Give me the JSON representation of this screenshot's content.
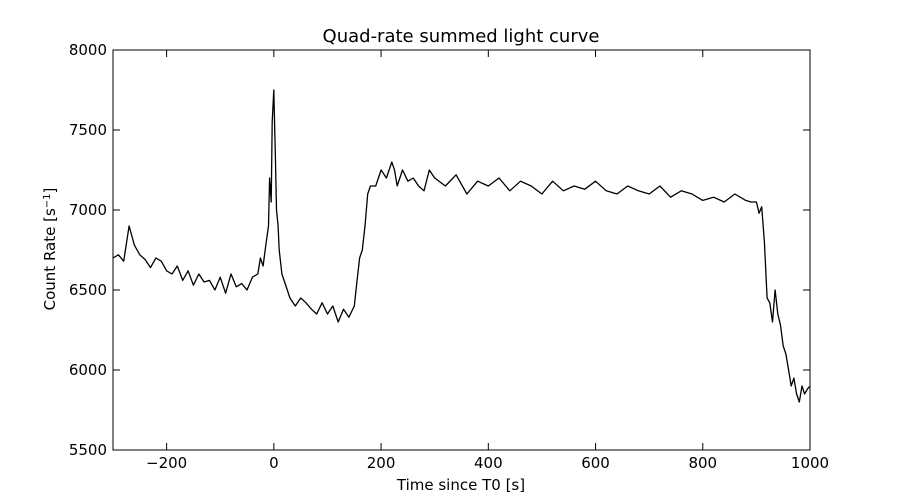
{
  "chart_data": {
    "type": "line",
    "title": "Quad-rate summed light curve",
    "xlabel": "Time since T0 [s]",
    "ylabel_prefix": "Count Rate [s",
    "ylabel_sup": "−1",
    "ylabel_suffix": "]",
    "xlim": [
      -300,
      1000
    ],
    "ylim": [
      5500,
      8000
    ],
    "xticks": [
      -200,
      0,
      200,
      400,
      600,
      800,
      1000
    ],
    "xtick_labels": [
      "−200",
      "0",
      "200",
      "400",
      "600",
      "800",
      "1000"
    ],
    "yticks": [
      5500,
      6000,
      6500,
      7000,
      7500,
      8000
    ],
    "ytick_labels": [
      "5500",
      "6000",
      "6500",
      "7000",
      "7500",
      "8000"
    ],
    "grid": false,
    "line_color": "#000000",
    "series": [
      {
        "x": [
          -300,
          -290,
          -280,
          -270,
          -260,
          -250,
          -240,
          -230,
          -220,
          -210,
          -200,
          -190,
          -180,
          -170,
          -160,
          -150,
          -140,
          -130,
          -120,
          -110,
          -100,
          -90,
          -80,
          -70,
          -60,
          -50,
          -40,
          -30,
          -25,
          -20,
          -15,
          -10,
          -8,
          -5,
          -3,
          0,
          3,
          5,
          8,
          10,
          15,
          20,
          25,
          30,
          40,
          50,
          60,
          70,
          80,
          90,
          100,
          110,
          120,
          130,
          140,
          150,
          155,
          160,
          165,
          170,
          175,
          180,
          190,
          200,
          210,
          220,
          225,
          230,
          240,
          250,
          260,
          270,
          280,
          290,
          300,
          320,
          340,
          360,
          380,
          400,
          420,
          440,
          460,
          480,
          500,
          520,
          540,
          560,
          580,
          600,
          620,
          640,
          660,
          680,
          700,
          720,
          740,
          760,
          780,
          800,
          820,
          840,
          860,
          880,
          890,
          900,
          905,
          910,
          915,
          920,
          925,
          930,
          935,
          940,
          945,
          950,
          955,
          960,
          965,
          970,
          975,
          980,
          985,
          990,
          995,
          1000
        ],
        "y": [
          6700,
          6720,
          6680,
          6900,
          6780,
          6720,
          6690,
          6640,
          6700,
          6680,
          6620,
          6600,
          6650,
          6560,
          6620,
          6530,
          6600,
          6550,
          6560,
          6500,
          6580,
          6480,
          6600,
          6520,
          6540,
          6500,
          6580,
          6600,
          6700,
          6650,
          6780,
          6900,
          7200,
          7050,
          7550,
          7750,
          7300,
          7000,
          6900,
          6750,
          6600,
          6550,
          6500,
          6450,
          6400,
          6450,
          6420,
          6380,
          6350,
          6420,
          6350,
          6400,
          6300,
          6380,
          6330,
          6400,
          6550,
          6700,
          6750,
          6900,
          7100,
          7150,
          7150,
          7250,
          7200,
          7300,
          7250,
          7150,
          7250,
          7180,
          7200,
          7150,
          7120,
          7250,
          7200,
          7150,
          7220,
          7100,
          7180,
          7150,
          7200,
          7120,
          7180,
          7150,
          7100,
          7180,
          7120,
          7150,
          7130,
          7180,
          7120,
          7100,
          7150,
          7120,
          7100,
          7150,
          7080,
          7120,
          7100,
          7060,
          7080,
          7050,
          7100,
          7060,
          7050,
          7050,
          6980,
          7020,
          6800,
          6450,
          6420,
          6300,
          6500,
          6350,
          6280,
          6150,
          6100,
          6000,
          5900,
          5950,
          5850,
          5800,
          5900,
          5850,
          5880,
          5900
        ]
      }
    ]
  }
}
